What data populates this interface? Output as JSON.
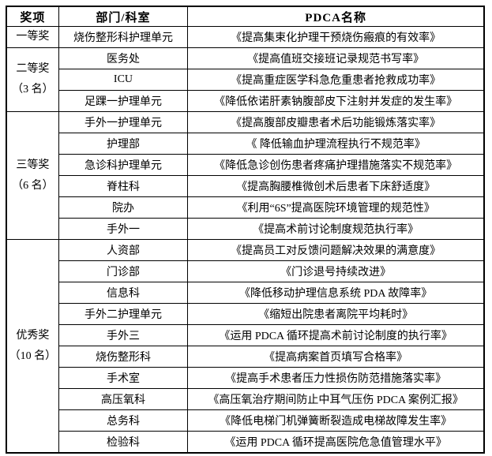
{
  "page": {
    "background": "#ffffff",
    "border_color": "#000000",
    "text_color": "#000000"
  },
  "table": {
    "headers": {
      "award": "奖项",
      "department": "部门/科室",
      "pdca": "PDCA名称"
    },
    "groups": [
      {
        "award": "一等奖",
        "count_note": "",
        "entries": [
          {
            "department": "烧伤整形科护理单元",
            "pdca": "《提高集束化护理干预烧伤瘢痕的有效率》"
          }
        ]
      },
      {
        "award": "二等奖",
        "count_note": "（3 名）",
        "entries": [
          {
            "department": "医务处",
            "pdca": "《提高值班交接班记录规范书写率》"
          },
          {
            "department": "ICU",
            "pdca": "《提高重症医学科急危重患者抢救成功率》"
          },
          {
            "department": "足踝一护理单元",
            "pdca": "《降低依诺肝素钠腹部皮下注射并发症的发生率》"
          }
        ]
      },
      {
        "award": "三等奖",
        "count_note": "（6 名）",
        "entries": [
          {
            "department": "手外一护理单元",
            "pdca": "《提高腹部皮瓣患者术后功能锻炼落实率》"
          },
          {
            "department": "护理部",
            "pdca": "《 降低输血护理流程执行不规范率》"
          },
          {
            "department": "急诊科护理单元",
            "pdca": "《降低急诊创伤患者疼痛护理措施落实不规范率》"
          },
          {
            "department": "脊柱科",
            "pdca": "《提高胸腰椎微创术后患者下床舒适度》"
          },
          {
            "department": "院办",
            "pdca": "《利用“6S”提高医院环境管理的规范性》"
          },
          {
            "department": "手外一",
            "pdca": "《提高术前讨论制度规范执行率》"
          }
        ]
      },
      {
        "award": "优秀奖",
        "count_note": "（10 名）",
        "entries": [
          {
            "department": "人资部",
            "pdca": "《提高员工对反馈问题解决效果的满意度》"
          },
          {
            "department": "门诊部",
            "pdca": "《门诊退号持续改进》"
          },
          {
            "department": "信息科",
            "pdca": "《降低移动护理信息系统 PDA 故障率》"
          },
          {
            "department": "手外二护理单元",
            "pdca": "《缩短出院患者离院平均耗时》"
          },
          {
            "department": "手外三",
            "pdca": "《运用 PDCA 循环提高术前讨论制度的执行率》"
          },
          {
            "department": "烧伤整形科",
            "pdca": "《提高病案首页填写合格率》"
          },
          {
            "department": "手术室",
            "pdca": "《提高手术患者压力性损伤防范措施落实率》"
          },
          {
            "department": "高压氧科",
            "pdca": "《高压氧治疗期间防止中耳气压伤 PDCA 案例汇报》"
          },
          {
            "department": "总务科",
            "pdca": "《降低电梯门机弹簧断裂造成电梯故障发生率》"
          },
          {
            "department": "检验科",
            "pdca": "《运用 PDCA 循环提高医院危急值管理水平》"
          }
        ]
      }
    ]
  }
}
